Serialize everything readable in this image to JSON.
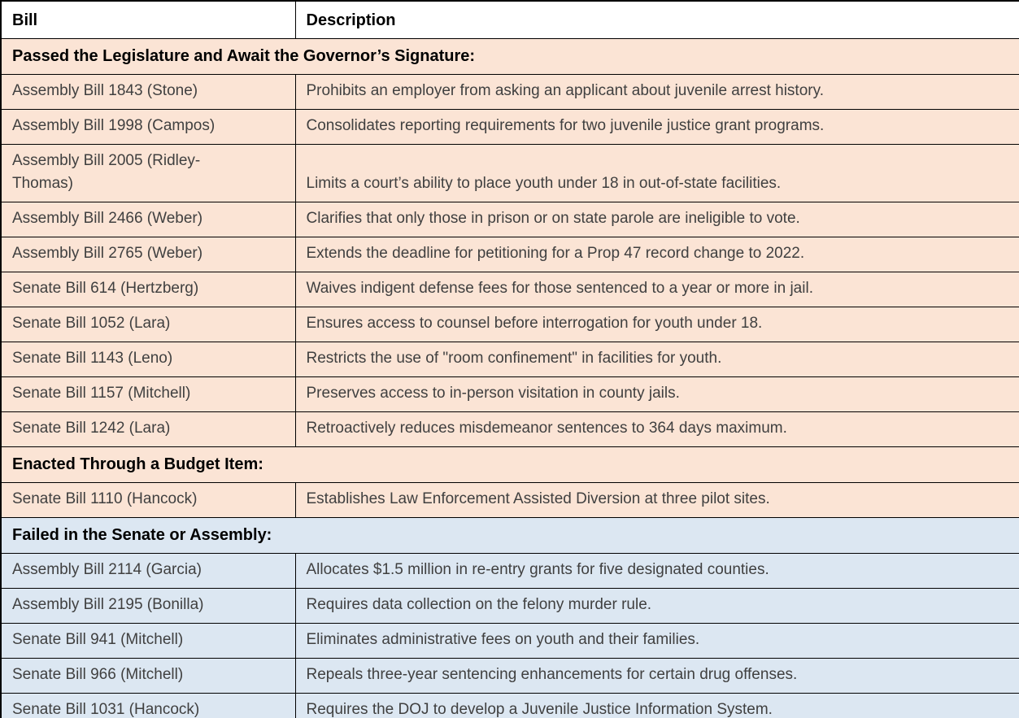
{
  "colors": {
    "section_peach_bg": "#fbe4d5",
    "section_blue_bg": "#dce7f2",
    "header_bg": "#ffffff",
    "border": "#000000",
    "body_text": "#404040",
    "heading_text": "#000000"
  },
  "table": {
    "columns": [
      {
        "label": "Bill"
      },
      {
        "label": "Description"
      }
    ],
    "sections": [
      {
        "title": "Passed the Legislature and Await the Governor’s Signature:",
        "theme": "peach",
        "rows": [
          {
            "bill": "Assembly Bill 1843 (Stone)",
            "description": "Prohibits an employer from asking an applicant about juvenile arrest history."
          },
          {
            "bill": "Assembly Bill 1998 (Campos)",
            "description": "Consolidates reporting requirements for two juvenile justice grant programs."
          },
          {
            "bill": "Assembly Bill 2005 (Ridley-Thomas)",
            "description": "Limits a court’s ability to place youth under 18 in out-of-state facilities.",
            "tall": true
          },
          {
            "bill": "Assembly Bill 2466 (Weber)",
            "description": "Clarifies that only those in prison or on state parole are ineligible to vote."
          },
          {
            "bill": "Assembly Bill 2765 (Weber)",
            "description": "Extends the deadline for petitioning for a Prop 47 record change to 2022."
          },
          {
            "bill": "Senate Bill 614 (Hertzberg)",
            "description": "Waives indigent defense fees for those sentenced to a year or more in jail."
          },
          {
            "bill": "Senate Bill 1052 (Lara)",
            "description": "Ensures access to counsel before interrogation for youth under 18."
          },
          {
            "bill": "Senate Bill 1143 (Leno)",
            "description": "Restricts the use of \"room confinement\" in facilities for youth."
          },
          {
            "bill": "Senate Bill 1157 (Mitchell)",
            "description": "Preserves access to in-person visitation in county jails."
          },
          {
            "bill": "Senate Bill 1242 (Lara)",
            "description": "Retroactively reduces misdemeanor sentences to 364 days maximum."
          }
        ]
      },
      {
        "title": "Enacted Through a Budget Item:",
        "theme": "peach",
        "rows": [
          {
            "bill": "Senate Bill 1110 (Hancock)",
            "description": "Establishes Law Enforcement Assisted Diversion at three pilot sites."
          }
        ]
      },
      {
        "title": "Failed in the Senate or Assembly:",
        "theme": "blue",
        "rows": [
          {
            "bill": "Assembly Bill 2114 (Garcia)",
            "description": "Allocates $1.5 million in re-entry grants for five designated counties."
          },
          {
            "bill": "Assembly Bill 2195 (Bonilla)",
            "description": "Requires data collection on the felony murder rule."
          },
          {
            "bill": "Senate Bill 941 (Mitchell)",
            "description": "Eliminates administrative fees on youth and their families."
          },
          {
            "bill": "Senate Bill 966 (Mitchell)",
            "description": "Repeals three-year sentencing enhancements for certain drug offenses."
          },
          {
            "bill": "Senate Bill 1031 (Hancock)",
            "description": "Requires the DOJ to develop a Juvenile Justice Information System."
          }
        ]
      }
    ]
  }
}
